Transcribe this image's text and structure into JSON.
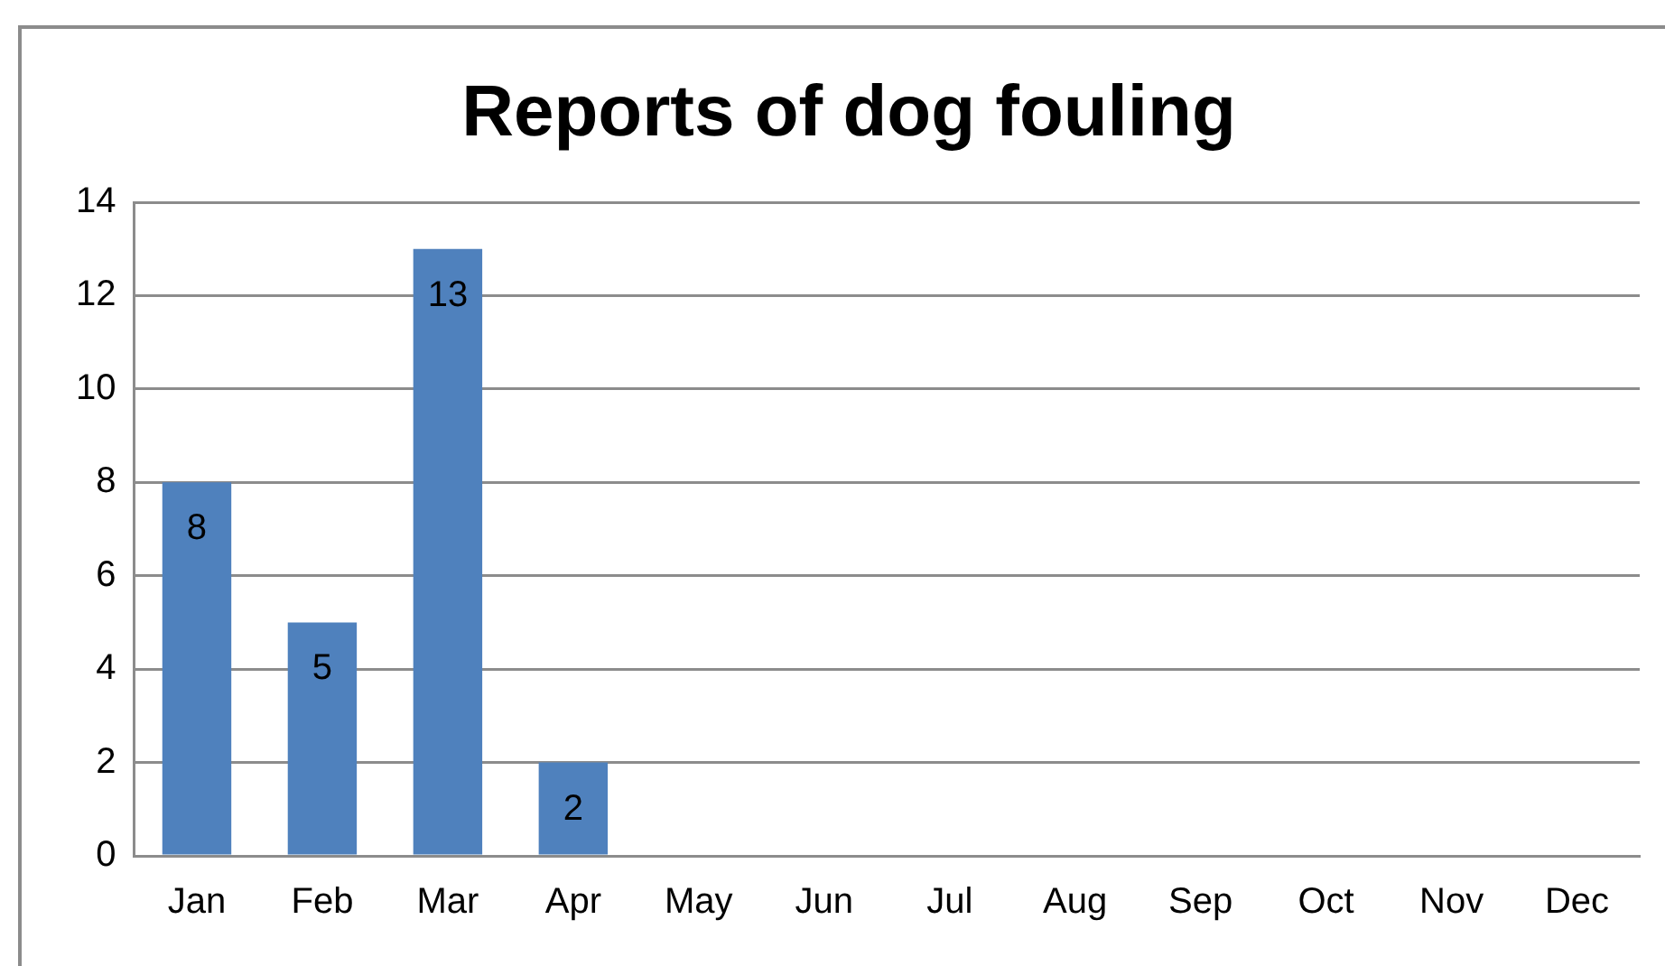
{
  "chart_data": {
    "type": "bar",
    "title": "Reports of dog fouling",
    "categories": [
      "Jan",
      "Feb",
      "Mar",
      "Apr",
      "May",
      "Jun",
      "Jul",
      "Aug",
      "Sep",
      "Oct",
      "Nov",
      "Dec"
    ],
    "values": [
      8,
      5,
      13,
      2,
      null,
      null,
      null,
      null,
      null,
      null,
      null,
      null
    ],
    "color": "#4f81bd",
    "ylim": [
      0,
      14
    ],
    "yticks": [
      0,
      2,
      4,
      6,
      8,
      10,
      12,
      14
    ],
    "grid": "y",
    "data_labels": true,
    "legend": false
  }
}
